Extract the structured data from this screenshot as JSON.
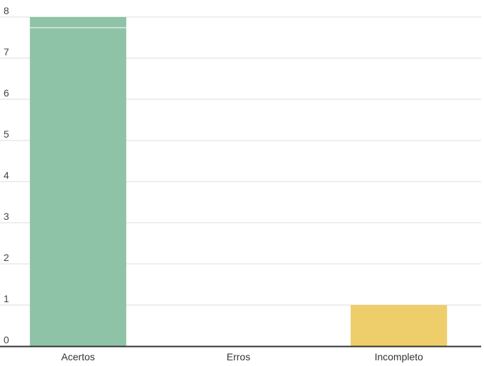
{
  "chart_data": {
    "type": "bar",
    "categories": [
      "Acertos",
      "Erros",
      "Incompleto"
    ],
    "values": [
      8,
      0,
      1
    ],
    "colors": [
      "#8fc3a7",
      "#f18a7a",
      "#eecd6b"
    ],
    "ylim": [
      0,
      8
    ],
    "yticks": [
      "0",
      "1",
      "2",
      "3",
      "4",
      "5",
      "6",
      "7",
      "8"
    ],
    "grid": true,
    "legend": "none"
  }
}
